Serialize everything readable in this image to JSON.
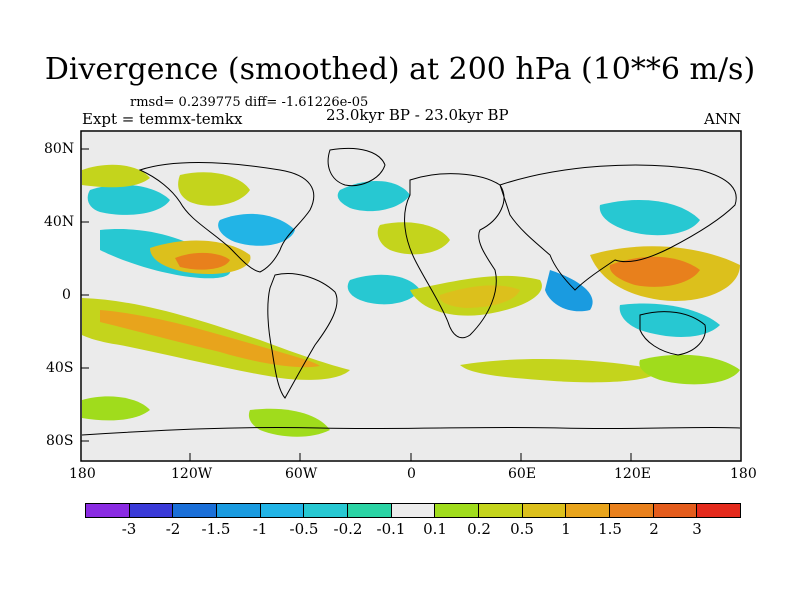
{
  "title": "Divergence (smoothed) at 200 hPa (10**6 m/s)",
  "stats": "rmsd= 0.239775 diff= -1.61226e-05",
  "expt": "Expt = temmx-temkx",
  "period": "23.0kyr BP - 23.0kyr BP",
  "season": "ANN",
  "map": {
    "lat_labels": [
      "80N",
      "40N",
      "0",
      "40S",
      "80S"
    ],
    "lon_labels": [
      "180",
      "120W",
      "60W",
      "0",
      "60E",
      "120E",
      "180"
    ]
  },
  "colorbar": {
    "colors": [
      "#8a2be2",
      "#3a3ad8",
      "#1a6fd8",
      "#1a9be0",
      "#22b4e6",
      "#27c8d2",
      "#2ad3a4",
      "#ececec",
      "#a0dc1c",
      "#c4d41c",
      "#dcc01c",
      "#e8a41c",
      "#e8801c",
      "#e45c1c",
      "#e42a1c"
    ],
    "labels": [
      "-3",
      "-2",
      "-1.5",
      "-1",
      "-0.5",
      "-0.2",
      "-0.1",
      "0.1",
      "0.2",
      "0.5",
      "1",
      "1.5",
      "2",
      "3"
    ]
  },
  "chart_data": {
    "type": "heatmap",
    "title": "Divergence (smoothed) at 200 hPa (10**6 m/s)",
    "x_range": [
      -180,
      180
    ],
    "y_range": [
      -90,
      90
    ],
    "levels": [
      -3,
      -2,
      -1.5,
      -1,
      -0.5,
      -0.2,
      -0.1,
      0.1,
      0.2,
      0.5,
      1,
      1.5,
      2,
      3
    ],
    "features": [
      {
        "lon": 130,
        "lat": 5,
        "value": 1.5
      },
      {
        "lon": 95,
        "lat": -2,
        "value": -1.5
      },
      {
        "lon": -120,
        "lat": 10,
        "value": 1
      },
      {
        "lon": -150,
        "lat": -15,
        "value": 1
      },
      {
        "lon": -100,
        "lat": 30,
        "value": -0.5
      },
      {
        "lon": 15,
        "lat": -5,
        "value": 1
      },
      {
        "lon": -30,
        "lat": -5,
        "value": -0.5
      }
    ]
  }
}
